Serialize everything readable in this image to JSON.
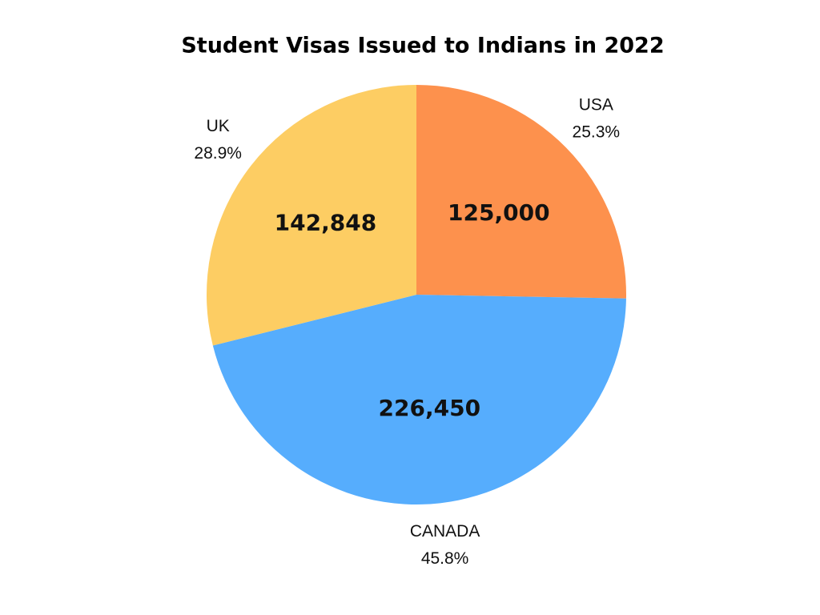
{
  "chart_data": {
    "type": "pie",
    "title": "Student Visas Issued to Indians in 2022",
    "categories": [
      "USA",
      "CANADA",
      "UK"
    ],
    "values": [
      125000,
      226450,
      142848
    ],
    "value_labels": [
      "125,000",
      "226,450",
      "142,848"
    ],
    "percent_labels": [
      "25.3%",
      "45.8%",
      "28.9%"
    ],
    "colors": [
      "#fd914d",
      "#56adfd",
      "#fdcd63"
    ]
  }
}
